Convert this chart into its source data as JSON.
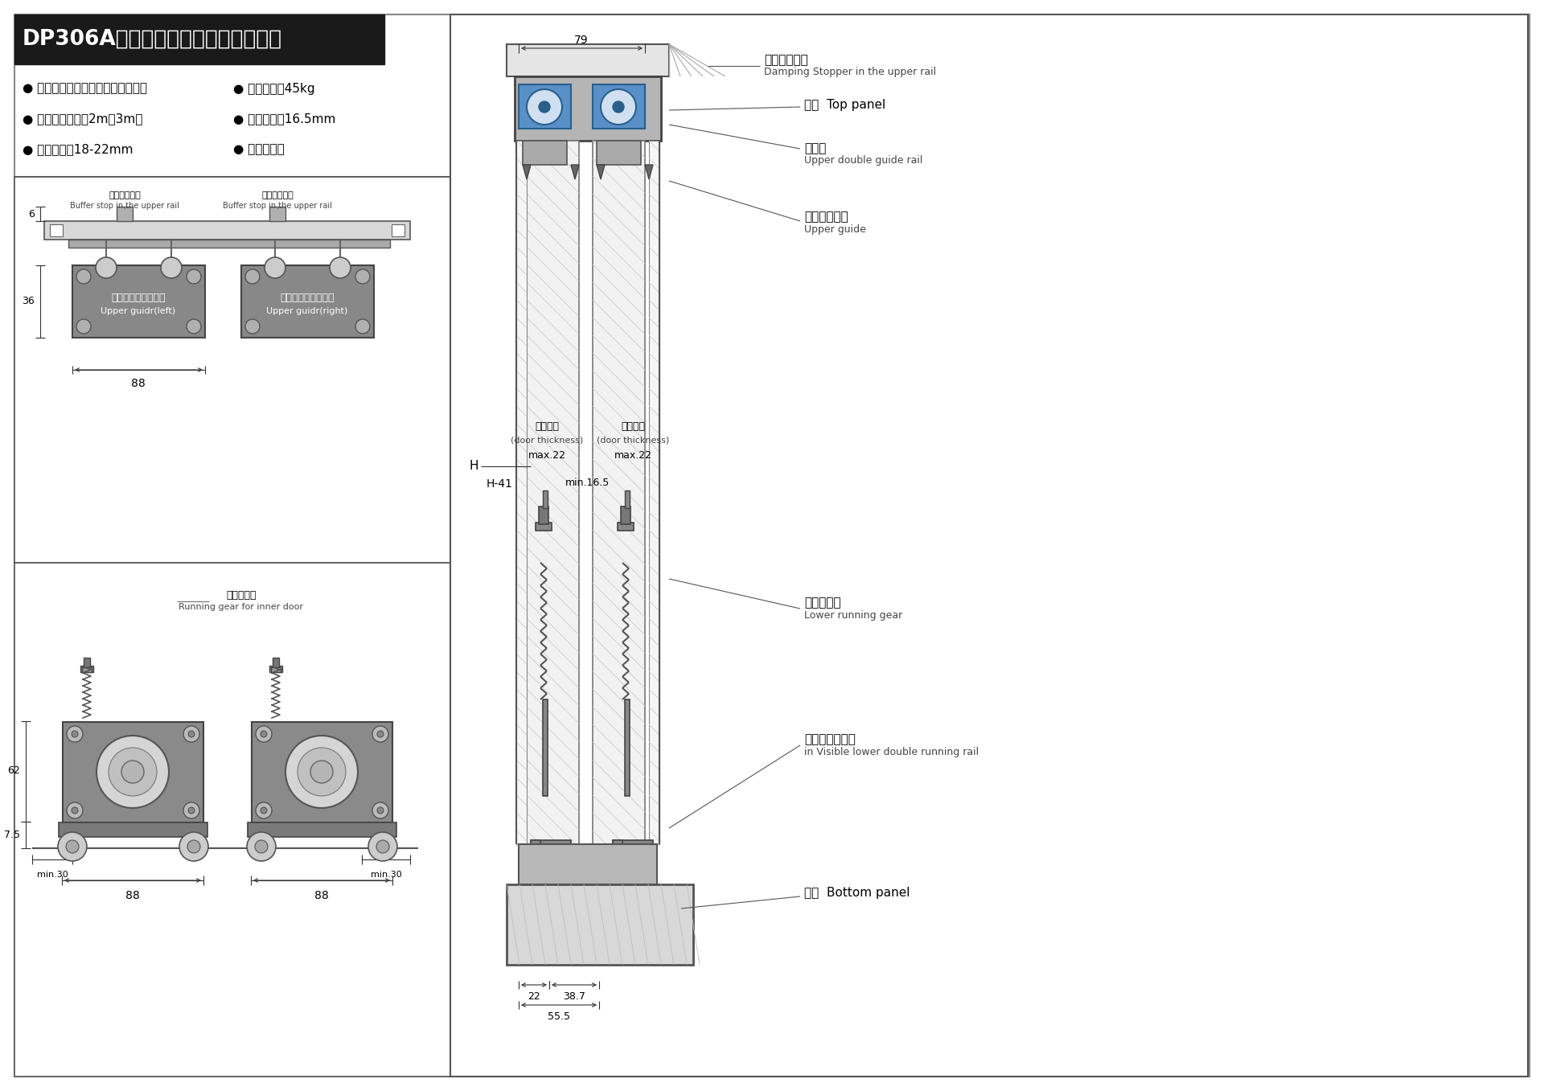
{
  "title": "DP306A阻尼趟门轮（明装式）安装图",
  "bg_color": "#ffffff",
  "title_bg": "#1a1a1a",
  "specs": [
    [
      "● 材质：冷板、镀蓝锌、尼龙、轴承",
      "● 单门承重：45kg"
    ],
    [
      "● 轨道：铝型材、2m、3m、",
      "● 两门间隙：16.5mm"
    ],
    [
      "● 门板厚度：18-22mm",
      "● 无噪音技术"
    ]
  ],
  "left_top_labels": {
    "stopper_left": "上缓冲限位器",
    "stopper_left_en": "Buffer stop in the upper rail",
    "stopper_right": "上缓冲限位器",
    "stopper_right_en": "Buffer stop in the upper rail",
    "guide_left_cn": "上导向轮组件（左）",
    "guide_left_en": "Upper guidr(left)",
    "guide_right_cn": "上导向轮组件（右）",
    "guide_right_en": "Upper guidr(right)",
    "dim_6": "6",
    "dim_36": "36",
    "dim_88": "88"
  },
  "left_bot_labels": {
    "title_cn": "下滚轮组件",
    "title_en": "Running gear for inner door",
    "dim_62": "62",
    "dim_7_5": "7.5",
    "dim_min30_l": "min.30",
    "dim_88_l": "88",
    "dim_88_r": "88",
    "dim_min30_r": "min.30"
  },
  "right_labels": {
    "stopper_cn": "上缓冲限位器",
    "stopper_en": "Damping Stopper in the upper rail",
    "top_panel_cn": "顶板",
    "top_panel_en": "Top panel",
    "upper_rail_cn": "上轨道",
    "upper_rail_en": "Upper double guide rail",
    "upper_guide_cn": "上导向轮组件",
    "upper_guide_en": "Upper guide",
    "door_thick_cn": "（门厚）",
    "door_thick_en": "(door thickness)",
    "door_max": "max.22",
    "min_gap": "min.16.5",
    "H": "H",
    "H41": "H-41",
    "lower_gear_cn": "下滚轮组件",
    "lower_gear_en": "Lower running gear",
    "lower_rail_cn": "下轨道（明装）",
    "lower_rail_en": "in Visible lower double running rail",
    "bottom_cn": "柜底",
    "bottom_en": "Bottom panel",
    "dim_79": "79",
    "dim_22": "22",
    "dim_38_7": "38.7",
    "dim_55_5": "55.5"
  }
}
